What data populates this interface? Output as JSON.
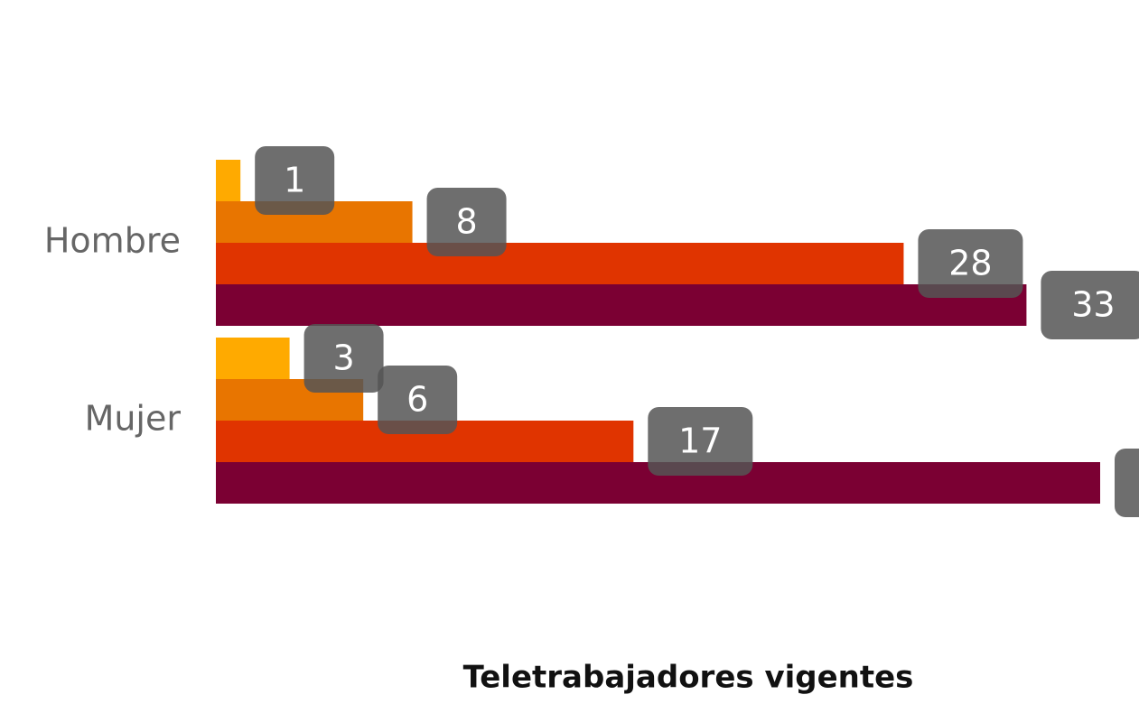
{
  "chart_data": {
    "type": "bar",
    "orientation": "horizontal",
    "title": "Teletrabajadores vigentes",
    "categories": [
      "Hombre",
      "Mujer"
    ],
    "series": [
      {
        "color": "#FFAA00",
        "values": [
          1,
          3
        ]
      },
      {
        "color": "#E87500",
        "values": [
          8,
          6
        ]
      },
      {
        "color": "#E03400",
        "values": [
          28,
          17
        ]
      },
      {
        "color": "#7B0033",
        "values": [
          33,
          36
        ]
      }
    ]
  }
}
